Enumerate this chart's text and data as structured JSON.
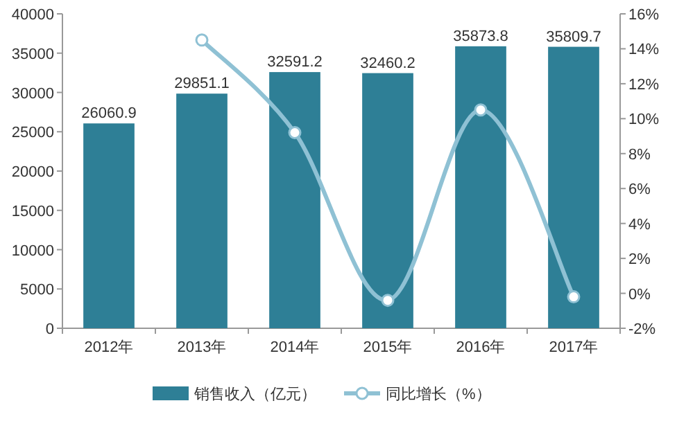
{
  "chart_data": {
    "type": "bar",
    "categories": [
      "2012年",
      "2013年",
      "2014年",
      "2015年",
      "2016年",
      "2017年"
    ],
    "series": [
      {
        "name": "销售收入（亿元）",
        "color": "#2e7f96",
        "values": [
          26060.9,
          29851.1,
          32591.2,
          32460.2,
          35873.8,
          35809.7
        ],
        "value_labels": [
          "26060.9",
          "29851.1",
          "32591.2",
          "32460.2",
          "35873.8",
          "35809.7"
        ]
      },
      {
        "name": "同比增长（%）",
        "type": "line",
        "axis": "y2",
        "color": "#8fc1d4",
        "marker": "circle",
        "values": [
          null,
          14.5,
          9.2,
          -0.4,
          10.5,
          -0.2
        ]
      }
    ],
    "ylim": [
      0,
      40000
    ],
    "yticks": [
      0,
      5000,
      10000,
      15000,
      20000,
      25000,
      30000,
      35000,
      40000
    ],
    "y2lim": [
      -2,
      16
    ],
    "y2ticks": [
      {
        "value": -2,
        "label": "-2%"
      },
      {
        "value": 0,
        "label": "0%"
      },
      {
        "value": 2,
        "label": "2%"
      },
      {
        "value": 4,
        "label": "4%"
      },
      {
        "value": 6,
        "label": "6%"
      },
      {
        "value": 8,
        "label": "8%"
      },
      {
        "value": 10,
        "label": "10%"
      },
      {
        "value": 12,
        "label": "12%"
      },
      {
        "value": 14,
        "label": "14%"
      },
      {
        "value": 16,
        "label": "16%"
      }
    ],
    "grid": false,
    "legend": "bottom"
  }
}
